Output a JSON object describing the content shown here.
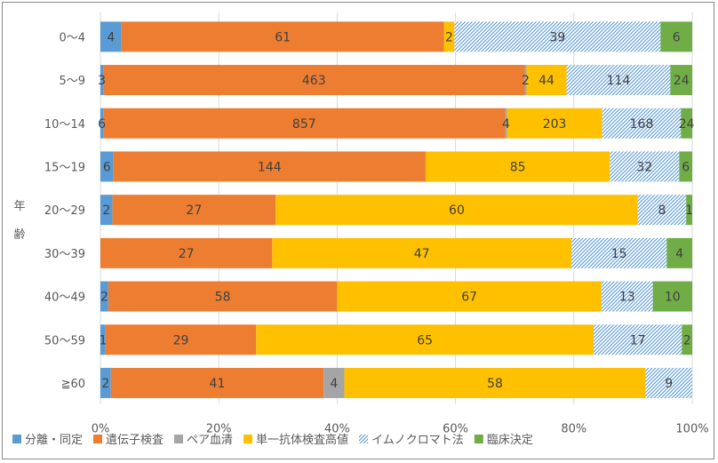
{
  "chart_data": {
    "type": "bar",
    "orientation": "horizontal",
    "stacked": "percent",
    "ylabel": "年齢",
    "categories": [
      "0〜4",
      "5〜9",
      "10〜14",
      "15〜19",
      "20〜29",
      "30〜39",
      "40〜49",
      "50〜59",
      "≧60"
    ],
    "xticks": [
      "0%",
      "20%",
      "40%",
      "60%",
      "80%",
      "100%"
    ],
    "xlim": [
      0,
      100
    ],
    "grid": true,
    "legend": "bottom",
    "series": [
      {
        "name": "分離・同定",
        "color": "#5b9bd5",
        "pattern": "solid",
        "values": [
          4,
          3,
          6,
          6,
          2,
          0,
          2,
          1,
          2
        ]
      },
      {
        "name": "遺伝子検査",
        "color": "#ed7d31",
        "pattern": "solid",
        "values": [
          61,
          463,
          857,
          144,
          27,
          27,
          58,
          29,
          41
        ]
      },
      {
        "name": "ペア血清",
        "color": "#a5a5a5",
        "pattern": "solid",
        "values": [
          0,
          2,
          4,
          0,
          0,
          0,
          0,
          0,
          4
        ]
      },
      {
        "name": "単一抗体検査高値",
        "color": "#ffc000",
        "pattern": "solid",
        "values": [
          2,
          44,
          203,
          85,
          60,
          47,
          67,
          65,
          58
        ]
      },
      {
        "name": "イムノクロマト法",
        "color": "#5b9bd5",
        "pattern": "hatch",
        "values": [
          39,
          114,
          168,
          32,
          8,
          15,
          13,
          17,
          9
        ]
      },
      {
        "name": "臨床決定",
        "color": "#70ad47",
        "pattern": "solid",
        "values": [
          6,
          24,
          24,
          6,
          1,
          4,
          10,
          2,
          0
        ]
      }
    ]
  }
}
